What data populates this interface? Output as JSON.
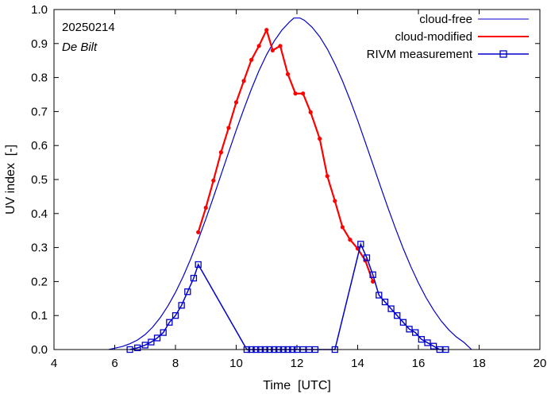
{
  "chart_data": {
    "type": "line",
    "xlabel": "Time  [UTC]",
    "ylabel": "UV index  [-]",
    "xlim": [
      4,
      20
    ],
    "ylim": [
      0,
      1.0
    ],
    "xticks": [
      4,
      6,
      8,
      10,
      12,
      14,
      16,
      18,
      20
    ],
    "xtick_labels": [
      "4",
      "6",
      "8",
      "10",
      "12",
      "14",
      "16",
      "18",
      "20"
    ],
    "yticks": [
      0,
      0.1,
      0.2,
      0.3,
      0.4,
      0.5,
      0.6,
      0.7,
      0.8,
      0.9,
      1.0
    ],
    "ytick_labels": [
      "0.0",
      "0.1",
      "0.2",
      "0.3",
      "0.4",
      "0.5",
      "0.6",
      "0.7",
      "0.8",
      "0.9",
      "1.0"
    ],
    "annotations": {
      "date": "20250214",
      "station": "De Bilt"
    },
    "legend_position": "top-right",
    "colors": {
      "cloud_free": "#0000cc",
      "cloud_modified": "#ff0000",
      "measurement": "#0000cc"
    },
    "series": [
      {
        "name": "cloud-free",
        "style": "line",
        "x": [
          5.8,
          6.0,
          6.25,
          6.5,
          6.75,
          7.0,
          7.25,
          7.5,
          7.75,
          8.0,
          8.25,
          8.5,
          8.75,
          9.0,
          9.25,
          9.5,
          9.75,
          10.0,
          10.25,
          10.5,
          10.75,
          11.0,
          11.25,
          11.5,
          11.75,
          11.9,
          12.1,
          12.25,
          12.5,
          12.75,
          13.0,
          13.25,
          13.5,
          13.75,
          14.0,
          14.25,
          14.5,
          14.75,
          15.0,
          15.25,
          15.5,
          15.75,
          16.0,
          16.25,
          16.5,
          16.75,
          17.0,
          17.25,
          17.5,
          17.75
        ],
        "y": [
          0.0,
          0.004,
          0.009,
          0.017,
          0.028,
          0.044,
          0.066,
          0.094,
          0.128,
          0.168,
          0.214,
          0.266,
          0.323,
          0.384,
          0.448,
          0.514,
          0.58,
          0.645,
          0.707,
          0.766,
          0.82,
          0.867,
          0.907,
          0.939,
          0.963,
          0.975,
          0.975,
          0.968,
          0.948,
          0.92,
          0.884,
          0.84,
          0.79,
          0.734,
          0.674,
          0.61,
          0.545,
          0.48,
          0.416,
          0.355,
          0.297,
          0.244,
          0.196,
          0.153,
          0.116,
          0.084,
          0.058,
          0.037,
          0.021,
          0.0
        ]
      },
      {
        "name": "cloud-modified",
        "style": "line-markers",
        "x": [
          8.75,
          9.0,
          9.25,
          9.5,
          9.75,
          10.0,
          10.25,
          10.5,
          10.75,
          11.0,
          11.2,
          11.45,
          11.7,
          11.95,
          12.2,
          12.45,
          12.75,
          13.0,
          13.25,
          13.5,
          13.75,
          14.0,
          14.25,
          14.5
        ],
        "y": [
          0.345,
          0.417,
          0.497,
          0.58,
          0.652,
          0.727,
          0.79,
          0.852,
          0.893,
          0.94,
          0.88,
          0.893,
          0.81,
          0.753,
          0.753,
          0.698,
          0.62,
          0.51,
          0.437,
          0.36,
          0.323,
          0.297,
          0.262,
          0.2
        ]
      },
      {
        "name": "RIVM measurement",
        "style": "line-squares",
        "x": [
          6.5,
          6.75,
          7.0,
          7.2,
          7.4,
          7.6,
          7.8,
          8.0,
          8.2,
          8.4,
          8.6,
          8.75,
          10.35,
          10.5,
          10.65,
          10.8,
          10.95,
          11.1,
          11.25,
          11.4,
          11.55,
          11.7,
          11.85,
          12.0,
          12.2,
          12.4,
          12.6,
          13.25,
          14.1,
          14.3,
          14.5,
          14.7,
          14.9,
          15.1,
          15.3,
          15.5,
          15.7,
          15.9,
          16.1,
          16.3,
          16.5,
          16.7,
          16.9
        ],
        "y": [
          0.0,
          0.005,
          0.013,
          0.022,
          0.034,
          0.05,
          0.08,
          0.1,
          0.13,
          0.17,
          0.21,
          0.25,
          0.0,
          0.0,
          0.0,
          0.0,
          0.0,
          0.0,
          0.0,
          0.0,
          0.0,
          0.0,
          0.0,
          0.0,
          0.0,
          0.0,
          0.0,
          0.0,
          0.31,
          0.27,
          0.22,
          0.16,
          0.14,
          0.12,
          0.1,
          0.08,
          0.06,
          0.05,
          0.03,
          0.02,
          0.01,
          0.0,
          0.0
        ]
      }
    ]
  }
}
